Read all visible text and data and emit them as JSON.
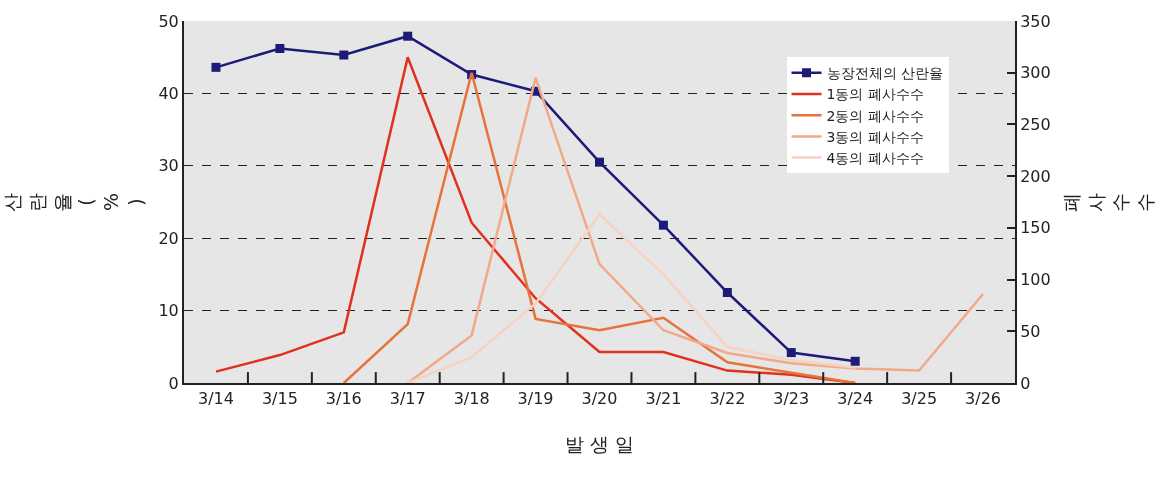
{
  "chart_data": {
    "type": "line",
    "xlabel": "발 생 일",
    "ylabel": "산란율(%)",
    "y2label": "폐사수수",
    "categories": [
      "3/14",
      "3/15",
      "3/16",
      "3/17",
      "3/18",
      "3/19",
      "3/20",
      "3/21",
      "3/22",
      "3/23",
      "3/24",
      "3/25",
      "3/26"
    ],
    "series": [
      {
        "name": "농장전체의 산란율",
        "color": "#1c1c78",
        "marker": "square",
        "values": [
          43.6,
          46.2,
          45.3,
          47.9,
          42.6,
          40.3,
          30.5,
          21.8,
          12.5,
          4.2,
          3.0,
          null,
          null
        ]
      },
      {
        "name": "1동의 폐사수수",
        "color": "#e0301e",
        "marker": "none",
        "axis": "y2",
        "values": [
          11,
          27,
          49,
          315,
          155,
          82,
          30,
          30,
          12,
          8,
          0,
          null,
          null
        ]
      },
      {
        "name": "2동의 폐사수수",
        "color": "#e4733c",
        "marker": "none",
        "axis": "y2",
        "values": [
          null,
          null,
          0,
          57,
          300,
          62,
          51,
          63,
          20,
          10,
          0,
          null,
          null
        ]
      },
      {
        "name": "3동의 폐사수수",
        "color": "#f0aa88",
        "marker": "none",
        "axis": "y2",
        "values": [
          null,
          null,
          null,
          0,
          46,
          295,
          115,
          51,
          29,
          19,
          14,
          12,
          86
        ]
      },
      {
        "name": "4동의 폐사수수",
        "color": "#f6d2c0",
        "marker": "none",
        "axis": "y2",
        "values": [
          null,
          null,
          null,
          0,
          25,
          77,
          163,
          105,
          35,
          22,
          15,
          null,
          null
        ]
      }
    ],
    "ylim": [
      0,
      50
    ],
    "yticks": [
      0,
      10,
      20,
      30,
      40,
      50
    ],
    "y2lim": [
      0,
      350
    ],
    "y2ticks": [
      0,
      50,
      100,
      150,
      200,
      250,
      300,
      350
    ],
    "grid": "y",
    "legend": "top right",
    "line_style": "solid"
  }
}
